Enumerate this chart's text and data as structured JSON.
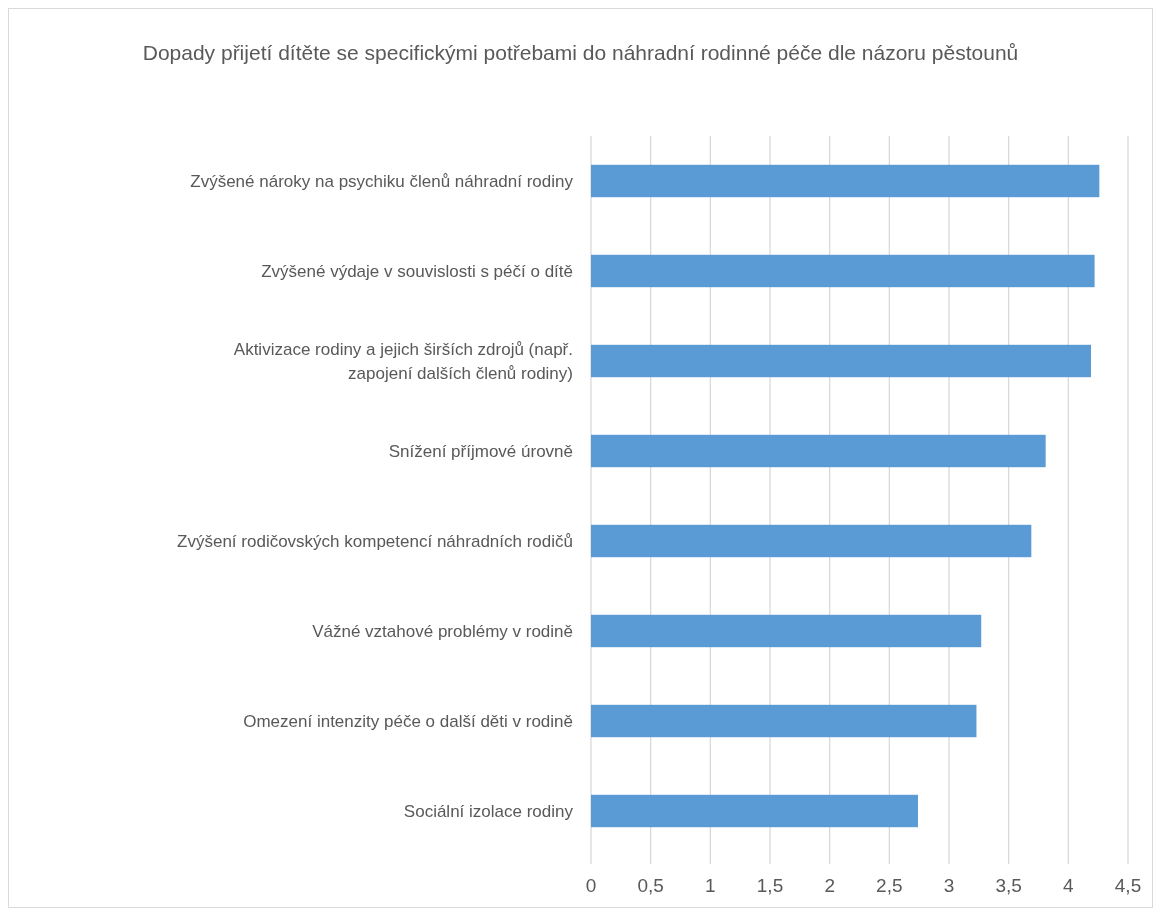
{
  "chart_data": {
    "type": "bar",
    "orientation": "horizontal",
    "title": "Dopady přijetí dítěte se specifickými potřebami do náhradní rodinné péče dle názoru pěstounů",
    "categories": [
      "Zvýšené nároky na psychiku členů náhradní rodiny",
      "Zvýšené výdaje v souvislosti s péčí o dítě",
      "Aktivizace rodiny a jejich širších zdrojů (např. zapojení dalších členů rodiny)",
      "Snížení příjmové úrovně",
      "Zvýšení rodičovských kompetencí náhradních rodičů",
      "Vážné vztahové problémy v rodině",
      "Omezení intenzity péče o další děti v rodině",
      "Sociální izolace rodiny"
    ],
    "values": [
      4.26,
      4.22,
      4.19,
      3.81,
      3.69,
      3.27,
      3.23,
      2.74
    ],
    "color": "#5b9bd5",
    "xlim": [
      0,
      4.5
    ],
    "xticks": [
      0,
      {
        "value": 0.5,
        "label": "0,5"
      },
      1,
      {
        "value": 1.5,
        "label": "1,5"
      },
      2,
      {
        "value": 2.5,
        "label": "2,5"
      },
      3,
      {
        "value": 3.5,
        "label": "3,5"
      },
      4,
      {
        "value": 4.5,
        "label": "4,5"
      }
    ],
    "grid": "x"
  }
}
